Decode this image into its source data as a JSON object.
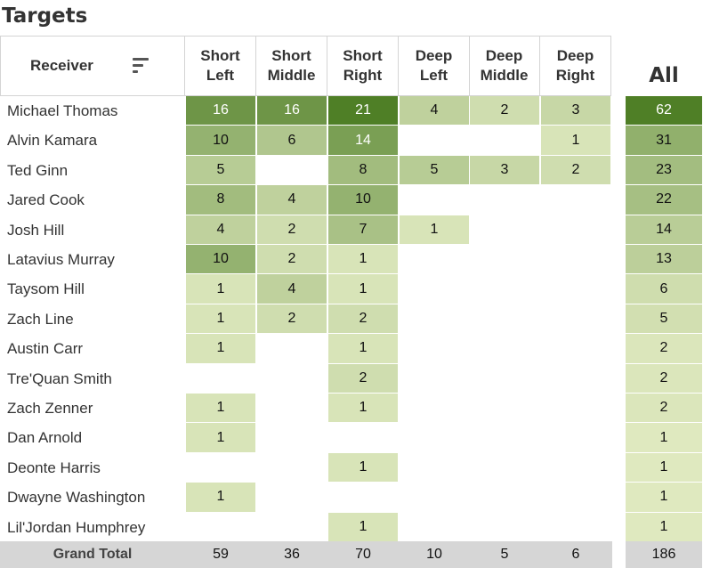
{
  "title": "Targets",
  "header": {
    "receiver_label": "Receiver",
    "all_label": "All",
    "grand_total_label": "Grand Total"
  },
  "chart_data": {
    "type": "table",
    "columns": [
      {
        "line1": "Short",
        "line2": "Left"
      },
      {
        "line1": "Short",
        "line2": "Middle"
      },
      {
        "line1": "Short",
        "line2": "Right"
      },
      {
        "line1": "Deep",
        "line2": "Left"
      },
      {
        "line1": "Deep",
        "line2": "Middle"
      },
      {
        "line1": "Deep",
        "line2": "Right"
      }
    ],
    "rows": [
      {
        "receiver": "Michael Thomas",
        "values": [
          16,
          16,
          21,
          4,
          2,
          3
        ],
        "all": 62
      },
      {
        "receiver": "Alvin Kamara",
        "values": [
          10,
          6,
          14,
          null,
          null,
          1
        ],
        "all": 31
      },
      {
        "receiver": "Ted Ginn",
        "values": [
          5,
          null,
          8,
          5,
          3,
          2
        ],
        "all": 23
      },
      {
        "receiver": "Jared Cook",
        "values": [
          8,
          4,
          10,
          null,
          null,
          null
        ],
        "all": 22
      },
      {
        "receiver": "Josh Hill",
        "values": [
          4,
          2,
          7,
          1,
          null,
          null
        ],
        "all": 14
      },
      {
        "receiver": "Latavius Murray",
        "values": [
          10,
          2,
          1,
          null,
          null,
          null
        ],
        "all": 13
      },
      {
        "receiver": "Taysom Hill",
        "values": [
          1,
          4,
          1,
          null,
          null,
          null
        ],
        "all": 6
      },
      {
        "receiver": "Zach Line",
        "values": [
          1,
          2,
          2,
          null,
          null,
          null
        ],
        "all": 5
      },
      {
        "receiver": "Austin Carr",
        "values": [
          1,
          null,
          1,
          null,
          null,
          null
        ],
        "all": 2
      },
      {
        "receiver": "Tre'Quan Smith",
        "values": [
          null,
          null,
          2,
          null,
          null,
          null
        ],
        "all": 2
      },
      {
        "receiver": "Zach Zenner",
        "values": [
          1,
          null,
          1,
          null,
          null,
          null
        ],
        "all": 2
      },
      {
        "receiver": "Dan Arnold",
        "values": [
          1,
          null,
          null,
          null,
          null,
          null
        ],
        "all": 1
      },
      {
        "receiver": "Deonte Harris",
        "values": [
          null,
          null,
          1,
          null,
          null,
          null
        ],
        "all": 1
      },
      {
        "receiver": "Dwayne Washington",
        "values": [
          1,
          null,
          null,
          null,
          null,
          null
        ],
        "all": 1
      },
      {
        "receiver": "Lil'Jordan Humphrey",
        "values": [
          null,
          null,
          1,
          null,
          null,
          null
        ],
        "all": 1
      }
    ],
    "grand_total": {
      "values": [
        59,
        36,
        70,
        10,
        5,
        6
      ],
      "all": 186
    },
    "colors": {
      "low": "#e3ecc4",
      "high": "#4f7f26",
      "total_bar": "#d6d6d6"
    }
  }
}
